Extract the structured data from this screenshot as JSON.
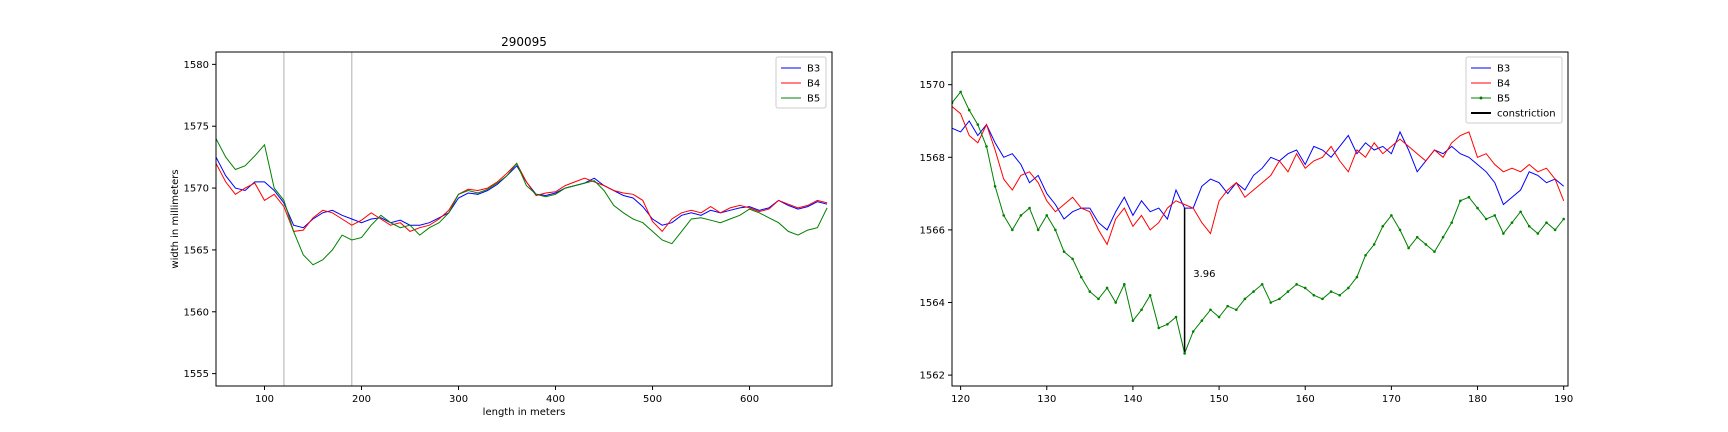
{
  "chart_data": [
    {
      "type": "line",
      "title": "290095",
      "xlabel": "length in meters",
      "ylabel": "width in millimeters",
      "xlim": [
        50,
        685
      ],
      "ylim": [
        1554,
        1581
      ],
      "xticks": [
        100,
        200,
        300,
        400,
        500,
        600
      ],
      "yticks": [
        1555,
        1560,
        1565,
        1570,
        1575,
        1580
      ],
      "vlines": [
        120,
        190
      ],
      "legend_position": "top-right",
      "grid": false,
      "series": [
        {
          "name": "B3",
          "color": "#0000ff",
          "x": [
            50,
            60,
            70,
            80,
            90,
            100,
            110,
            120,
            130,
            140,
            150,
            160,
            170,
            180,
            190,
            200,
            210,
            220,
            230,
            240,
            250,
            260,
            270,
            280,
            290,
            300,
            310,
            320,
            330,
            340,
            350,
            360,
            370,
            380,
            390,
            400,
            410,
            420,
            430,
            440,
            450,
            460,
            470,
            480,
            490,
            500,
            510,
            520,
            530,
            540,
            550,
            560,
            570,
            580,
            590,
            600,
            610,
            620,
            630,
            640,
            650,
            660,
            670,
            680
          ],
          "y": [
            1572.5,
            1571,
            1570,
            1569.8,
            1570.5,
            1570.5,
            1569.8,
            1568.8,
            1567,
            1566.8,
            1567.5,
            1568,
            1568.2,
            1567.8,
            1567.5,
            1567.2,
            1567.5,
            1567.6,
            1567.2,
            1567.4,
            1567,
            1567,
            1567.2,
            1567.6,
            1568,
            1569.2,
            1569.6,
            1569.5,
            1569.8,
            1570.3,
            1571,
            1571.8,
            1570.5,
            1569.5,
            1569.4,
            1569.6,
            1570,
            1570.2,
            1570.4,
            1570.8,
            1570.2,
            1569.8,
            1569.4,
            1569.2,
            1568.5,
            1567.5,
            1567,
            1567.2,
            1567.8,
            1568,
            1567.8,
            1568.2,
            1568,
            1568.2,
            1568.4,
            1568.5,
            1568.2,
            1568.4,
            1569,
            1568.6,
            1568.3,
            1568.5,
            1568.9,
            1568.7
          ]
        },
        {
          "name": "B4",
          "color": "#ff0000",
          "x": [
            50,
            60,
            70,
            80,
            90,
            100,
            110,
            120,
            130,
            140,
            150,
            160,
            170,
            180,
            190,
            200,
            210,
            220,
            230,
            240,
            250,
            260,
            270,
            280,
            290,
            300,
            310,
            320,
            330,
            340,
            350,
            360,
            370,
            380,
            390,
            400,
            410,
            420,
            430,
            440,
            450,
            460,
            470,
            480,
            490,
            500,
            510,
            520,
            530,
            540,
            550,
            560,
            570,
            580,
            590,
            600,
            610,
            620,
            630,
            640,
            650,
            660,
            670,
            680
          ],
          "y": [
            1572,
            1570.5,
            1569.5,
            1570,
            1570.4,
            1569,
            1569.5,
            1568.5,
            1566.5,
            1566.6,
            1567.6,
            1568.2,
            1568,
            1567.5,
            1567,
            1567.4,
            1568,
            1567.5,
            1567,
            1567.2,
            1566.5,
            1566.8,
            1567,
            1567.5,
            1568.2,
            1569.5,
            1569.9,
            1569.8,
            1570,
            1570.5,
            1571.2,
            1572,
            1570.5,
            1569.4,
            1569.6,
            1569.7,
            1570.2,
            1570.5,
            1570.8,
            1570.5,
            1570.2,
            1569.8,
            1569.6,
            1569.5,
            1569,
            1567.3,
            1566.5,
            1567.5,
            1568,
            1568.2,
            1568,
            1568.5,
            1568,
            1568.4,
            1568.6,
            1568.4,
            1568.1,
            1568.3,
            1569,
            1568.7,
            1568.4,
            1568.6,
            1569,
            1568.8
          ]
        },
        {
          "name": "B5",
          "color": "#008000",
          "x": [
            50,
            60,
            70,
            80,
            90,
            100,
            110,
            120,
            130,
            140,
            150,
            160,
            170,
            180,
            190,
            200,
            210,
            220,
            230,
            240,
            250,
            260,
            270,
            280,
            290,
            300,
            310,
            320,
            330,
            340,
            350,
            360,
            370,
            380,
            390,
            400,
            410,
            420,
            430,
            440,
            450,
            460,
            470,
            480,
            490,
            500,
            510,
            520,
            530,
            540,
            550,
            560,
            570,
            580,
            590,
            600,
            610,
            620,
            630,
            640,
            650,
            660,
            670,
            680
          ],
          "y": [
            1574,
            1572.5,
            1571.5,
            1571.8,
            1572.6,
            1573.5,
            1570,
            1569,
            1566.5,
            1564.6,
            1563.8,
            1564.2,
            1565,
            1566.2,
            1565.8,
            1566,
            1567,
            1567.8,
            1567.2,
            1566.8,
            1567,
            1566.2,
            1566.8,
            1567.2,
            1568,
            1569.5,
            1569.8,
            1569.6,
            1569.9,
            1570.4,
            1571,
            1572,
            1570.2,
            1569.5,
            1569.3,
            1569.5,
            1570,
            1570.2,
            1570.4,
            1570.6,
            1569.8,
            1568.6,
            1568,
            1567.5,
            1567.2,
            1566.5,
            1565.8,
            1565.5,
            1566.5,
            1567.5,
            1567.6,
            1567.4,
            1567.2,
            1567.5,
            1567.8,
            1568.3,
            1568,
            1567.6,
            1567.2,
            1566.5,
            1566.2,
            1566.6,
            1566.8,
            1568.4
          ]
        }
      ]
    },
    {
      "type": "line",
      "title": "",
      "xlabel": "",
      "ylabel": "",
      "xlim": [
        119,
        190.5
      ],
      "ylim": [
        1561.7,
        1570.9
      ],
      "xticks": [
        120,
        130,
        140,
        150,
        160,
        170,
        180,
        190
      ],
      "yticks": [
        1562,
        1564,
        1566,
        1568,
        1570
      ],
      "legend_position": "top-right",
      "grid": false,
      "annotation": {
        "text": "3.96",
        "x": 147,
        "y": 1564.7
      },
      "series": [
        {
          "name": "B3",
          "color": "#0000ff",
          "x": [
            119,
            120,
            121,
            122,
            123,
            124,
            125,
            126,
            127,
            128,
            129,
            130,
            131,
            132,
            133,
            134,
            135,
            136,
            137,
            138,
            139,
            140,
            141,
            142,
            143,
            144,
            145,
            146,
            147,
            148,
            149,
            150,
            151,
            152,
            153,
            154,
            155,
            156,
            157,
            158,
            159,
            160,
            161,
            162,
            163,
            164,
            165,
            166,
            167,
            168,
            169,
            170,
            171,
            172,
            173,
            174,
            175,
            176,
            177,
            178,
            179,
            180,
            181,
            182,
            183,
            184,
            185,
            186,
            187,
            188,
            189,
            190
          ],
          "y": [
            1568.8,
            1568.7,
            1569,
            1568.6,
            1568.9,
            1568.4,
            1568,
            1568.1,
            1567.8,
            1567.3,
            1567.5,
            1567,
            1566.7,
            1566.3,
            1566.5,
            1566.6,
            1566.6,
            1566.2,
            1566,
            1566.5,
            1566.9,
            1566.4,
            1566.8,
            1566.5,
            1566.6,
            1566.3,
            1567.1,
            1566.6,
            1566.6,
            1567.2,
            1567.4,
            1567.3,
            1567,
            1567.3,
            1567.1,
            1567.5,
            1567.7,
            1568,
            1567.9,
            1568.1,
            1568.2,
            1567.8,
            1568.3,
            1568.2,
            1568,
            1568.3,
            1568.6,
            1568.1,
            1568.4,
            1568.2,
            1568.3,
            1568.1,
            1568.7,
            1568.2,
            1567.6,
            1567.9,
            1568.2,
            1568.1,
            1568.3,
            1568.1,
            1568,
            1567.8,
            1567.6,
            1567.3,
            1566.7,
            1566.9,
            1567.1,
            1567.6,
            1567.5,
            1567.3,
            1567.4,
            1567.2
          ]
        },
        {
          "name": "B4",
          "color": "#ff0000",
          "x": [
            119,
            120,
            121,
            122,
            123,
            124,
            125,
            126,
            127,
            128,
            129,
            130,
            131,
            132,
            133,
            134,
            135,
            136,
            137,
            138,
            139,
            140,
            141,
            142,
            143,
            144,
            145,
            146,
            147,
            148,
            149,
            150,
            151,
            152,
            153,
            154,
            155,
            156,
            157,
            158,
            159,
            160,
            161,
            162,
            163,
            164,
            165,
            166,
            167,
            168,
            169,
            170,
            171,
            172,
            173,
            174,
            175,
            176,
            177,
            178,
            179,
            180,
            181,
            182,
            183,
            184,
            185,
            186,
            187,
            188,
            189,
            190
          ],
          "y": [
            1569.4,
            1569.2,
            1568.6,
            1568.4,
            1568.9,
            1568.2,
            1567.4,
            1567.1,
            1567.5,
            1567.6,
            1567.3,
            1566.8,
            1566.5,
            1566.7,
            1566.9,
            1566.6,
            1566.5,
            1566,
            1565.6,
            1566.3,
            1566.6,
            1566.1,
            1566.4,
            1566,
            1566.2,
            1566.6,
            1566.8,
            1566.7,
            1566.6,
            1566.2,
            1565.9,
            1566.8,
            1567.1,
            1567.3,
            1566.9,
            1567.1,
            1567.3,
            1567.5,
            1567.9,
            1567.6,
            1568.1,
            1567.7,
            1567.9,
            1568,
            1568.3,
            1567.9,
            1567.6,
            1568.2,
            1568,
            1568.4,
            1568.1,
            1568.3,
            1568.5,
            1568.3,
            1568.1,
            1567.9,
            1568.2,
            1568,
            1568.4,
            1568.6,
            1568.7,
            1568,
            1568.1,
            1567.8,
            1567.6,
            1567.7,
            1567.6,
            1567.8,
            1567.6,
            1567.7,
            1567.4,
            1566.8
          ]
        },
        {
          "name": "B5",
          "color": "#008000",
          "x": [
            119,
            120,
            121,
            122,
            123,
            124,
            125,
            126,
            127,
            128,
            129,
            130,
            131,
            132,
            133,
            134,
            135,
            136,
            137,
            138,
            139,
            140,
            141,
            142,
            143,
            144,
            145,
            146,
            147,
            148,
            149,
            150,
            151,
            152,
            153,
            154,
            155,
            156,
            157,
            158,
            159,
            160,
            161,
            162,
            163,
            164,
            165,
            166,
            167,
            168,
            169,
            170,
            171,
            172,
            173,
            174,
            175,
            176,
            177,
            178,
            179,
            180,
            181,
            182,
            183,
            184,
            185,
            186,
            187,
            188,
            189,
            190
          ],
          "y": [
            1569.5,
            1569.8,
            1569.3,
            1568.9,
            1568.3,
            1567.2,
            1566.4,
            1566,
            1566.4,
            1566.6,
            1566,
            1566.4,
            1566,
            1565.4,
            1565.2,
            1564.7,
            1564.3,
            1564.1,
            1564.4,
            1564,
            1564.5,
            1563.5,
            1563.8,
            1564.2,
            1563.3,
            1563.4,
            1563.6,
            1562.6,
            1563.2,
            1563.5,
            1563.8,
            1563.6,
            1563.9,
            1563.8,
            1564.1,
            1564.3,
            1564.5,
            1564,
            1564.1,
            1564.3,
            1564.5,
            1564.4,
            1564.2,
            1564.1,
            1564.3,
            1564.2,
            1564.4,
            1564.7,
            1565.3,
            1565.6,
            1566.1,
            1566.4,
            1566,
            1565.5,
            1565.8,
            1565.6,
            1565.4,
            1565.8,
            1566.2,
            1566.8,
            1566.9,
            1566.6,
            1566.3,
            1566.4,
            1565.9,
            1566.2,
            1566.5,
            1566.1,
            1565.9,
            1566.2,
            1566,
            1566.3
          ]
        },
        {
          "name": "constriction",
          "color": "#000000",
          "x": [
            146,
            146
          ],
          "y": [
            1566.6,
            1562.64
          ]
        }
      ]
    }
  ]
}
